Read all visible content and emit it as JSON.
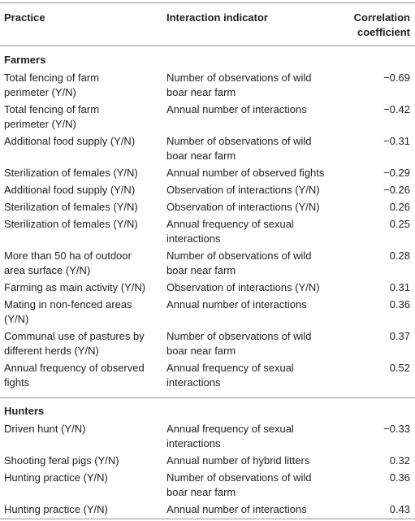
{
  "header": {
    "practice": "Practice",
    "indicator": "Interaction indicator",
    "coef_line1": "Correlation",
    "coef_line2": "coefficient"
  },
  "sections": [
    {
      "title": "Farmers",
      "rows": [
        {
          "practice": [
            "Total fencing of farm",
            "perimeter (Y/N)"
          ],
          "indicator": [
            "Number of observations of wild",
            "boar near farm"
          ],
          "coef": "−0.69"
        },
        {
          "practice": [
            "Total fencing of farm",
            "perimeter (Y/N)"
          ],
          "indicator": [
            "Annual number of interactions"
          ],
          "coef": "−0.42"
        },
        {
          "practice": [
            "Additional food supply (Y/N)"
          ],
          "indicator": [
            "Number of observations of wild",
            "boar near farm"
          ],
          "coef": "−0.31"
        },
        {
          "practice": [
            "Sterilization of females (Y/N)"
          ],
          "indicator": [
            "Annual number of observed fights"
          ],
          "coef": "−0.29"
        },
        {
          "practice": [
            "Additional food supply (Y/N)"
          ],
          "indicator": [
            "Observation of interactions (Y/N)"
          ],
          "coef": "−0.26"
        },
        {
          "practice": [
            "Sterilization of females (Y/N)"
          ],
          "indicator": [
            "Observation of interactions (Y/N)"
          ],
          "coef": "0.26"
        },
        {
          "practice": [
            "Sterilization of females (Y/N)"
          ],
          "indicator": [
            "Annual frequency of sexual",
            "interactions"
          ],
          "coef": "0.25"
        },
        {
          "practice": [
            "More than 50 ha of outdoor",
            "area surface (Y/N)"
          ],
          "indicator": [
            "Number of observations of wild",
            "boar near farm"
          ],
          "coef": "0.28"
        },
        {
          "practice": [
            "Farming as main activity (Y/N)"
          ],
          "indicator": [
            "Observation of interactions (Y/N)"
          ],
          "coef": "0.31"
        },
        {
          "practice": [
            "Mating in non-fenced areas",
            "(Y/N)"
          ],
          "indicator": [
            "Annual number of interactions"
          ],
          "coef": "0.36"
        },
        {
          "practice": [
            "Communal use of pastures by",
            "different herds (Y/N)"
          ],
          "indicator": [
            "Number of observations of wild",
            "boar near farm"
          ],
          "coef": "0.37"
        },
        {
          "practice": [
            "Annual frequency of observed",
            "fights"
          ],
          "indicator": [
            "Annual frequency of sexual",
            "interactions"
          ],
          "coef": "0.52"
        }
      ]
    },
    {
      "title": "Hunters",
      "rows": [
        {
          "practice": [
            "Driven hunt (Y/N)"
          ],
          "indicator": [
            "Annual frequency of sexual",
            "interactions"
          ],
          "coef": "−0.33"
        },
        {
          "practice": [
            "Shooting feral pigs (Y/N)"
          ],
          "indicator": [
            "Annual number of hybrid litters"
          ],
          "coef": "0.32"
        },
        {
          "practice": [
            "Hunting practice (Y/N)"
          ],
          "indicator": [
            "Number of observations of wild",
            "boar near farm"
          ],
          "coef": "0.36"
        },
        {
          "practice": [
            "Hunting practice (Y/N)"
          ],
          "indicator": [
            "Annual number of interactions"
          ],
          "coef": "0.43"
        }
      ]
    }
  ]
}
